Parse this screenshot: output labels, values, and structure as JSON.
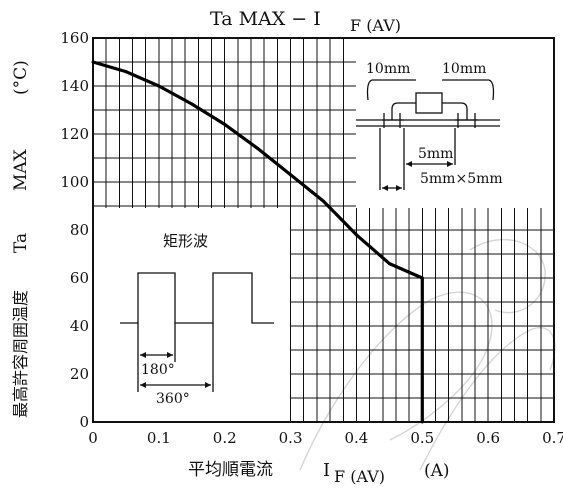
{
  "chart_data": {
    "type": "line",
    "title": "Ta MAX − I",
    "title_subscript": "F (AV)",
    "xlabel": "平均順電流",
    "xlabel_symbol": "I",
    "xlabel_subscript": "F (AV)",
    "xlabel_unit": "(A)",
    "ylabel": "最高許容周囲温度",
    "ylabel_symbol": "Ta",
    "ylabel_qualifier": "MAX",
    "ylabel_unit": "(°C)",
    "xlim": [
      0,
      0.7
    ],
    "ylim": [
      0,
      160
    ],
    "x_ticks": [
      "0",
      "0.1",
      "0.2",
      "0.3",
      "0.4",
      "0.5",
      "0.6",
      "0.7"
    ],
    "y_ticks": [
      "0",
      "20",
      "40",
      "60",
      "80",
      "100",
      "120",
      "140",
      "160"
    ],
    "grid": true,
    "series": [
      {
        "x": [
          0,
          0.05,
          0.1,
          0.15,
          0.2,
          0.25,
          0.3,
          0.35,
          0.4,
          0.45,
          0.5,
          0.5
        ],
        "y": [
          150,
          146,
          140,
          132.5,
          124,
          114,
          103,
          92,
          78,
          66,
          60,
          0
        ]
      }
    ],
    "annotations": {
      "waveform_label": "矩形波",
      "pulse_width_label": "180°",
      "period_label": "360°",
      "mount_left_dim": "10mm",
      "mount_right_dim": "10mm",
      "mount_gap_dim": "5mm",
      "mount_pad_dim": "5mm×5mm"
    }
  }
}
